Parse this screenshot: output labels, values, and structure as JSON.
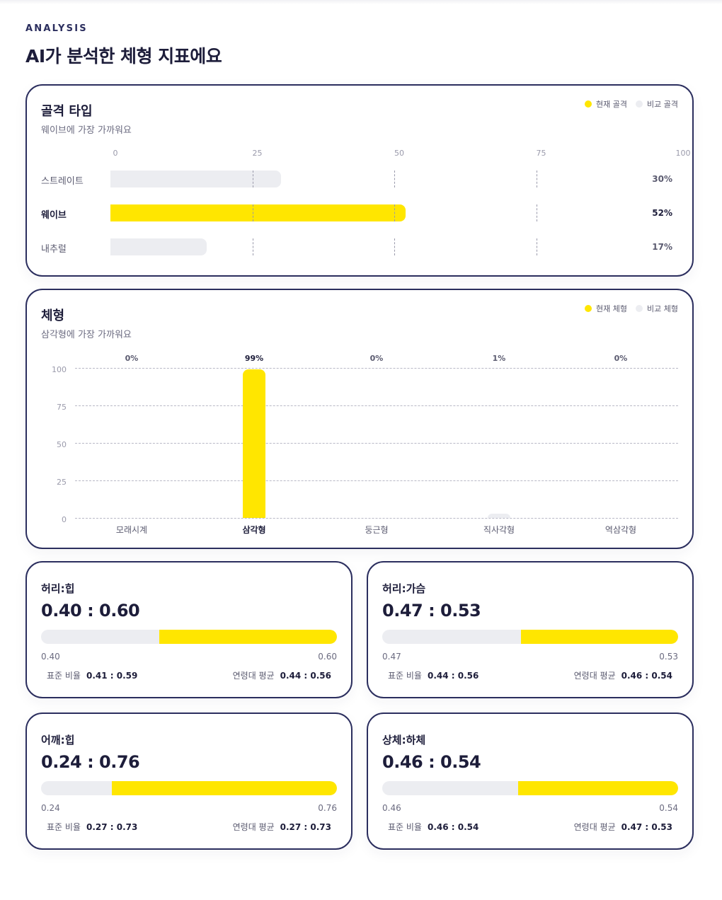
{
  "header": {
    "eyebrow": "ANALYSIS",
    "title": "AI가 분석한 체형 지표에요"
  },
  "colors": {
    "current": "#ffe600",
    "compare": "#ecedf1",
    "border": "#2b2e5e"
  },
  "bone_card": {
    "title": "골격 타입",
    "subtitle": "웨이브에 가장 가까워요",
    "legend_current": "현재 골격",
    "legend_compare": "비교 골격"
  },
  "body_card": {
    "title": "체형",
    "subtitle": "삼각형에 가장 가까워요",
    "legend_current": "현재 체형",
    "legend_compare": "비교 체형"
  },
  "chart_data": [
    {
      "type": "bar",
      "orientation": "horizontal",
      "title": "골격 타입",
      "categories": [
        "스트레이트",
        "웨이브",
        "내추럴"
      ],
      "values": [
        30,
        52,
        17
      ],
      "value_labels": [
        "30%",
        "52%",
        "17%"
      ],
      "highlighted": "웨이브",
      "ticks": [
        "0",
        "25",
        "50",
        "75",
        "100"
      ],
      "xlim": [
        0,
        100
      ],
      "legend": [
        "현재 골격",
        "비교 골격"
      ]
    },
    {
      "type": "bar",
      "orientation": "vertical",
      "title": "체형",
      "categories": [
        "모래시계",
        "삼각형",
        "둥근형",
        "직사각형",
        "역삼각형"
      ],
      "values": [
        0,
        99,
        0,
        1,
        0
      ],
      "value_labels": [
        "0%",
        "99%",
        "0%",
        "1%",
        "0%"
      ],
      "highlighted": "삼각형",
      "ticks": [
        "0",
        "25",
        "50",
        "75",
        "100"
      ],
      "ylim": [
        0,
        100
      ],
      "legend": [
        "현재 체형",
        "비교 체형"
      ]
    }
  ],
  "ratios": [
    {
      "title": "허리:힙",
      "value": "0.40 : 0.60",
      "left": 0.4,
      "left_label": "0.40",
      "right_label": "0.60",
      "std_label": "표준 비율",
      "std_value": "0.41 : 0.59",
      "avg_label": "연령대 평균",
      "avg_value": "0.44 : 0.56"
    },
    {
      "title": "허리:가슴",
      "value": "0.47 : 0.53",
      "left": 0.47,
      "left_label": "0.47",
      "right_label": "0.53",
      "std_label": "표준 비율",
      "std_value": "0.44 : 0.56",
      "avg_label": "연령대 평균",
      "avg_value": "0.46 : 0.54"
    },
    {
      "title": "어깨:힙",
      "value": "0.24 : 0.76",
      "left": 0.24,
      "left_label": "0.24",
      "right_label": "0.76",
      "std_label": "표준 비율",
      "std_value": "0.27 : 0.73",
      "avg_label": "연령대 평균",
      "avg_value": "0.27 : 0.73"
    },
    {
      "title": "상체:하체",
      "value": "0.46 : 0.54",
      "left": 0.46,
      "left_label": "0.46",
      "right_label": "0.54",
      "std_label": "표준 비율",
      "std_value": "0.46 : 0.54",
      "avg_label": "연령대 평균",
      "avg_value": "0.47 : 0.53"
    }
  ]
}
